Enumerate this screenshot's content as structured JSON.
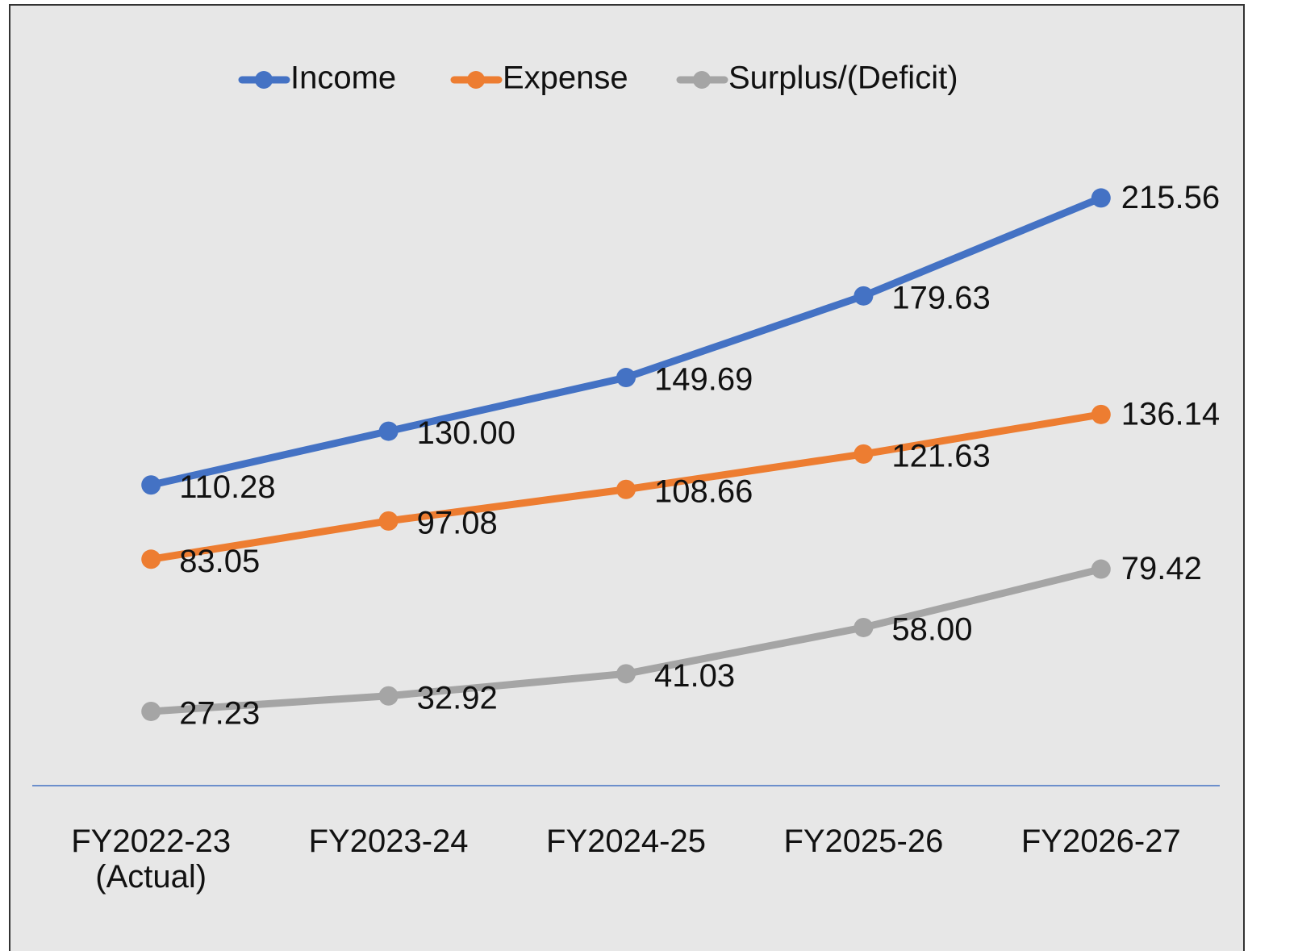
{
  "chart_data": {
    "type": "line",
    "categories": [
      "FY2022-23 (Actual)",
      "FY2023-24",
      "FY2024-25",
      "FY2025-26",
      "FY2026-27"
    ],
    "series": [
      {
        "name": "Income",
        "color": "#4472c4",
        "values": [
          110.28,
          130,
          149.69,
          179.63,
          215.56
        ],
        "value_labels": [
          "110.28",
          "130.00",
          "149.69",
          "179.63",
          "215.56"
        ]
      },
      {
        "name": "Expense",
        "color": "#ed7d31",
        "values": [
          83.05,
          97.08,
          108.66,
          121.63,
          136.14
        ],
        "value_labels": [
          "83.05",
          "97.08",
          "108.66",
          "121.63",
          "136.14"
        ]
      },
      {
        "name": "Surplus/(Deficit)",
        "color": "#a5a5a5",
        "values": [
          27.23,
          32.92,
          41.03,
          58,
          79.42
        ],
        "value_labels": [
          "27.23",
          "32.92",
          "41.03",
          "58.00",
          "79.42"
        ]
      }
    ],
    "ylim": [
      0,
      250
    ],
    "legend": "top",
    "grid": false
  }
}
